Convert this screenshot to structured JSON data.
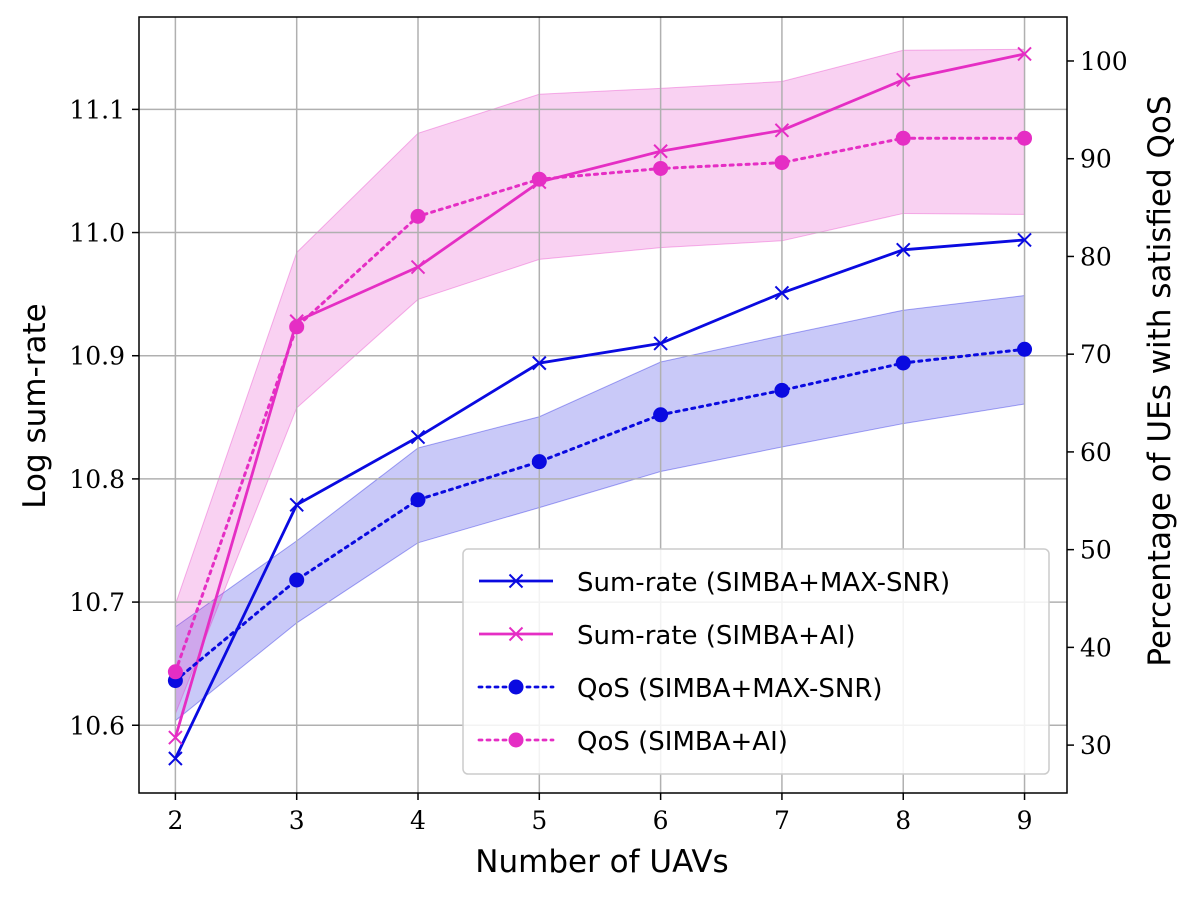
{
  "chart_data": {
    "type": "line",
    "x": [
      2,
      3,
      4,
      5,
      6,
      7,
      8,
      9
    ],
    "xlabel": "Number of UAVs",
    "ylabel_left": "Log sum-rate",
    "ylabel_right": "Percentage of UEs with satisfied QoS",
    "xlim": [
      1.7,
      9.35
    ],
    "ylim_left": [
      10.545,
      11.175
    ],
    "ylim_right": [
      25.1,
      104.5
    ],
    "xticks": [
      2,
      3,
      4,
      5,
      6,
      7,
      8,
      9
    ],
    "yticks_left": [
      10.6,
      10.7,
      10.8,
      10.9,
      11.0,
      11.1
    ],
    "yticks_left_labels": [
      "10.6",
      "10.7",
      "10.8",
      "10.9",
      "11.0",
      "11.1"
    ],
    "yticks_right": [
      30,
      40,
      50,
      60,
      70,
      80,
      90,
      100
    ],
    "grid": true,
    "legend_position": "lower-right",
    "series": [
      {
        "name": "Sum-rate (SIMBA+MAX-SNR)",
        "axis": "left",
        "color": "#0a0ae0",
        "marker": "x",
        "linestyle": "solid",
        "values": [
          10.573,
          10.779,
          10.834,
          10.894,
          10.91,
          10.951,
          10.986,
          10.994
        ]
      },
      {
        "name": "Sum-rate (SIMBA+AI)",
        "axis": "left",
        "color": "#e52ec4",
        "marker": "x",
        "linestyle": "solid",
        "values": [
          10.59,
          10.928,
          10.972,
          11.041,
          11.066,
          11.083,
          11.124,
          11.145
        ]
      },
      {
        "name": "QoS (SIMBA+MAX-SNR)",
        "axis": "right",
        "color": "#0a0ae0",
        "marker": "o",
        "linestyle": "dotted",
        "values": [
          36.6,
          46.9,
          55.1,
          59.0,
          63.8,
          66.3,
          69.1,
          70.5
        ],
        "band_lower": [
          32.5,
          42.5,
          50.7,
          54.3,
          58.0,
          60.5,
          62.9,
          64.9
        ],
        "band_upper": [
          42.1,
          50.9,
          60.4,
          63.6,
          69.2,
          71.9,
          74.5,
          76.0
        ]
      },
      {
        "name": "QoS (SIMBA+AI)",
        "axis": "right",
        "color": "#e52ec4",
        "marker": "o",
        "linestyle": "dotted",
        "values": [
          37.5,
          72.8,
          84.1,
          87.9,
          89.0,
          89.6,
          92.1,
          92.1
        ],
        "band_lower": [
          33.2,
          64.5,
          75.6,
          79.7,
          80.9,
          81.6,
          84.4,
          84.3
        ],
        "band_upper": [
          44.4,
          80.4,
          92.6,
          96.6,
          97.2,
          97.9,
          101.1,
          101.2
        ]
      }
    ]
  }
}
